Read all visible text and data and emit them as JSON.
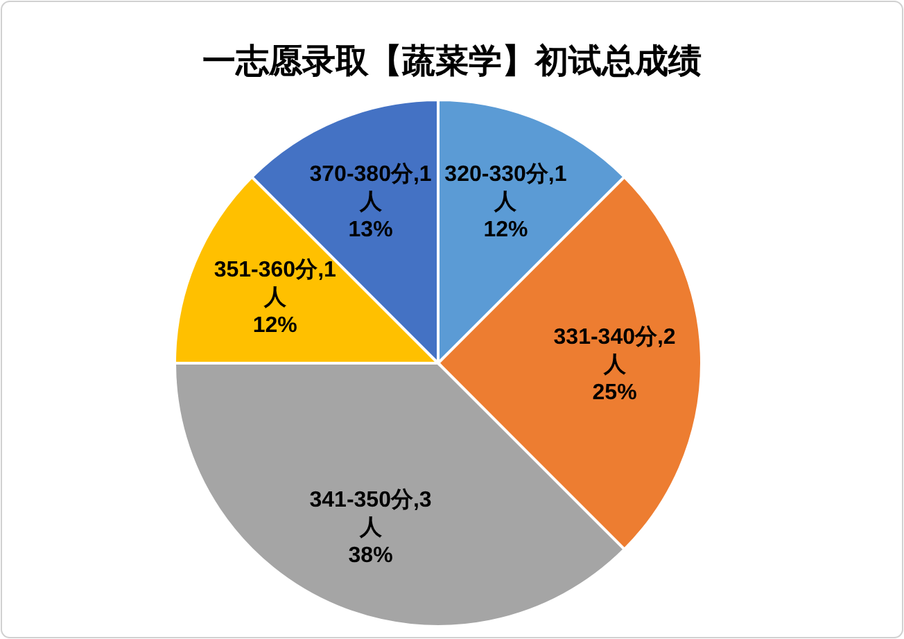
{
  "chart_data": {
    "type": "pie",
    "title": "一志愿录取【蔬菜学】初试总成绩",
    "categories": [
      "320-330分",
      "331-340分",
      "341-350分",
      "351-360分",
      "370-380分"
    ],
    "values": [
      1,
      2,
      3,
      1,
      1
    ],
    "value_labels": [
      ",1人 12%",
      ",2人 25%",
      ",3人 38%",
      ",1人 12%",
      ",1人 13%"
    ],
    "colors": [
      "#5b9bd5",
      "#ed7d31",
      "#a5a5a5",
      "#ffc000",
      "#4472c4"
    ],
    "legend": false
  }
}
